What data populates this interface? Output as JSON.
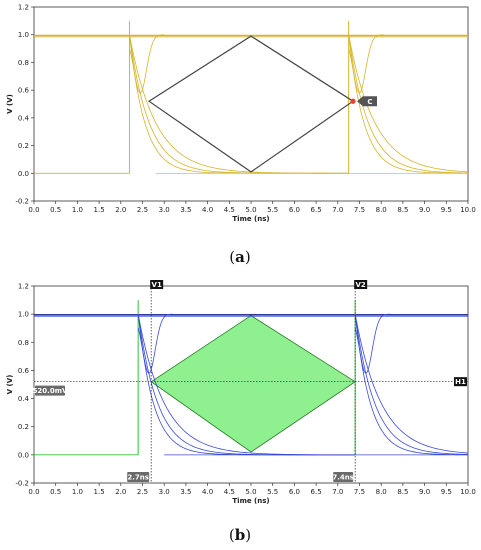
{
  "captions": {
    "a_open": "(",
    "a_letter": "a",
    "a_close": ")",
    "b_open": "(",
    "b_letter": "b",
    "b_close": ")"
  },
  "chart_data": [
    {
      "panel": "a",
      "type": "line",
      "title": "",
      "xlabel": "Time (ns)",
      "ylabel": "V (V)",
      "xlim": [
        0.0,
        10.0
      ],
      "ylim": [
        -0.2,
        1.2
      ],
      "xticks": [
        "0.0",
        "0.5",
        "1.0",
        "1.5",
        "2.0",
        "2.5",
        "3.0",
        "3.5",
        "4.0",
        "4.5",
        "5.0",
        "5.5",
        "6.0",
        "6.5",
        "7.0",
        "7.5",
        "8.0",
        "8.5",
        "9.0",
        "9.5",
        "10.0"
      ],
      "yticks": [
        "-0.2",
        "0.0",
        "0.2",
        "0.4",
        "0.6",
        "0.8",
        "1.0",
        "1.2"
      ],
      "trace_color": "#d6b52a",
      "eye_color": "#444444",
      "eye_mask": {
        "left": [
          2.65,
          0.52
        ],
        "top": [
          5.0,
          0.99
        ],
        "right": [
          7.35,
          0.52
        ],
        "bottom": [
          5.0,
          0.01
        ]
      },
      "cursor_label": "C",
      "cursor_point": [
        7.35,
        0.52
      ],
      "cursor_color": "#e8412c",
      "transitions_ns": [
        2.2,
        7.25
      ]
    },
    {
      "panel": "b",
      "type": "line",
      "title": "",
      "xlabel": "Time (ns)",
      "ylabel": "V (V)",
      "xlim": [
        0.0,
        10.0
      ],
      "ylim": [
        -0.2,
        1.2
      ],
      "xticks": [
        "0.0",
        "0.5",
        "1.0",
        "1.5",
        "2.0",
        "2.5",
        "3.0",
        "3.5",
        "4.0",
        "4.5",
        "5.0",
        "5.5",
        "6.0",
        "6.5",
        "7.0",
        "7.5",
        "8.0",
        "8.5",
        "9.0",
        "9.5",
        "10.0"
      ],
      "yticks": [
        "-0.2",
        "0.0",
        "0.2",
        "0.4",
        "0.6",
        "0.8",
        "1.0",
        "1.2"
      ],
      "trace_color": "#3b4bd6",
      "trace_color_dark": "#10208a",
      "green_color": "#2ec437",
      "eye_fill": "#8ef08e",
      "eye_mask": {
        "left": [
          2.7,
          0.52
        ],
        "top": [
          5.0,
          0.99
        ],
        "right": [
          7.4,
          0.52
        ],
        "bottom": [
          5.0,
          0.02
        ]
      },
      "markers": {
        "v1_label": "V1",
        "v1_x": 2.7,
        "v2_label": "V2",
        "v2_x": 7.4,
        "h1_label": "H1",
        "h1_y": 0.52,
        "h_value_label": "520.0mV",
        "v1_value_label": "2.7ns",
        "v2_value_label": "7.4ns"
      },
      "transitions_ns": [
        2.4,
        7.4
      ]
    }
  ]
}
